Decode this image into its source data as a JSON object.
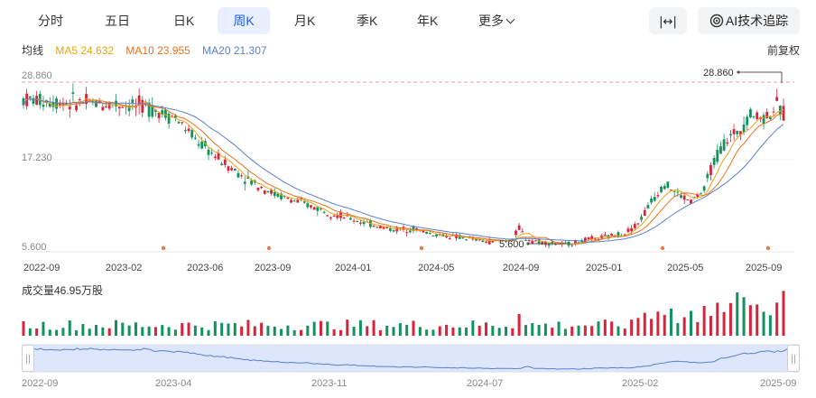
{
  "tabs": [
    "分时",
    "五日",
    "日K",
    "周K",
    "月K",
    "季K",
    "年K",
    "更多"
  ],
  "active_tab": "周K",
  "toolbar": {
    "expand_glyph": "|↔|",
    "ai_label": "AI技术追踪"
  },
  "legend": {
    "label": "均线",
    "ma5": "MA5 24.632",
    "ma10": "MA10 23.955",
    "ma20": "MA20 21.307"
  },
  "adjust_label": "前复权",
  "colors": {
    "up": "#d9233b",
    "down": "#12925d",
    "ma5": "#e8a317",
    "ma10": "#e8731e",
    "ma20": "#5b7fce",
    "accent": "#1f5ff5"
  },
  "price_axis": {
    "top": "28.860",
    "mid": "17.230",
    "bottom": "5.600"
  },
  "annotations": {
    "max": "28.860",
    "min": "5.600"
  },
  "date_axis": [
    "2022-09",
    "2023-02",
    "2023-06",
    "2023-09",
    "2024-01",
    "2024-05",
    "2024-09",
    "2025-01",
    "2025-05",
    "2025-09"
  ],
  "volume_title": "成交量46.95万股",
  "navigator_axis": [
    "2022-09",
    "2023-04",
    "2023-11",
    "2024-07",
    "2025-02",
    "2025-09"
  ]
}
